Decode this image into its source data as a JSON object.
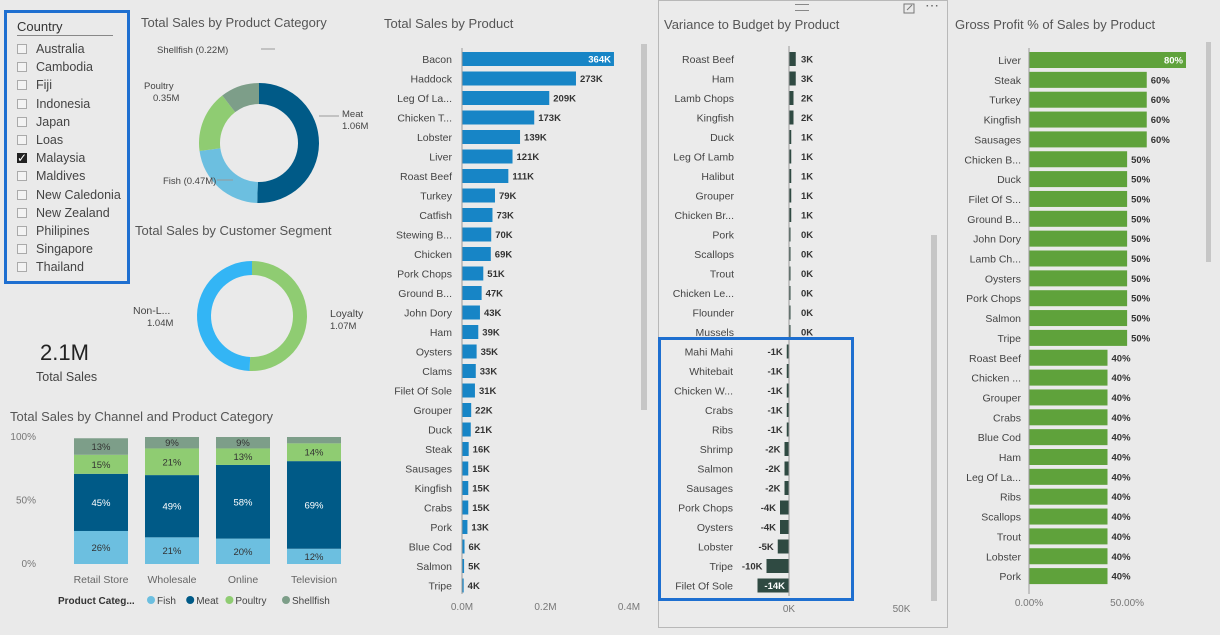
{
  "slicer": {
    "header": "Country",
    "items": [
      {
        "label": "Australia",
        "checked": false
      },
      {
        "label": "Cambodia",
        "checked": false
      },
      {
        "label": "Fiji",
        "checked": false
      },
      {
        "label": "Indonesia",
        "checked": false
      },
      {
        "label": "Japan",
        "checked": false
      },
      {
        "label": "Loas",
        "checked": false
      },
      {
        "label": "Malaysia",
        "checked": true
      },
      {
        "label": "Maldives",
        "checked": false
      },
      {
        "label": "New Caledonia",
        "checked": false
      },
      {
        "label": "New Zealand",
        "checked": false
      },
      {
        "label": "Philipines",
        "checked": false
      },
      {
        "label": "Singapore",
        "checked": false
      },
      {
        "label": "Thailand",
        "checked": false
      }
    ]
  },
  "kpi": {
    "value": "2.1M",
    "label": "Total Sales"
  },
  "variance_panel": {
    "menu_icon": "ellipsis-icon",
    "focus_icon": "focus-mode-icon",
    "drag_icon": "drag-handle-icon",
    "highlight_color": "#1e6fd0"
  },
  "colors": {
    "fish": "#6cbfe0",
    "meat": "#005a87",
    "poultry": "#8fcc72",
    "shellfish": "#7d9e89",
    "bar_blue": "#1785c6",
    "bar_green": "#5fa23b",
    "bar_dark": "#2f4a42"
  },
  "chart_data": [
    {
      "id": "category",
      "type": "pie",
      "title": "Total Sales by Product Category",
      "slices": [
        {
          "name": "Meat",
          "value": 1.06,
          "label": "1.06M",
          "color": "#005a87"
        },
        {
          "name": "Fish",
          "value": 0.47,
          "label": "(0.47M)",
          "color": "#6cbfe0"
        },
        {
          "name": "Poultry",
          "value": 0.35,
          "label": "0.35M",
          "color": "#8fcc72"
        },
        {
          "name": "Shellfish",
          "value": 0.22,
          "label": "(0.22M)",
          "color": "#7d9e89"
        }
      ]
    },
    {
      "id": "segment",
      "type": "pie",
      "title": "Total Sales by Customer Segment",
      "slices": [
        {
          "name": "Loyalty",
          "value": 1.07,
          "label": "1.07M",
          "color": "#8fcc72"
        },
        {
          "name": "Non-L...",
          "value": 1.04,
          "label": "1.04M",
          "color": "#33b5f5"
        }
      ]
    },
    {
      "id": "channel",
      "type": "bar",
      "stacked": "percent",
      "title": "Total Sales by Channel and Product Category",
      "categories": [
        "Retail Store",
        "Wholesale",
        "Online",
        "Television"
      ],
      "ylim": [
        0,
        100
      ],
      "yticks": [
        "0%",
        "50%",
        "100%"
      ],
      "legend_title": "Product Categ...",
      "series": [
        {
          "name": "Fish",
          "color": "#6cbfe0",
          "values": [
            26,
            21,
            20,
            12
          ],
          "labels": [
            "26%",
            "21%",
            "20%",
            "12%"
          ]
        },
        {
          "name": "Meat",
          "color": "#005a87",
          "values": [
            45,
            49,
            58,
            69
          ],
          "labels": [
            "45%",
            "49%",
            "58%",
            "69%"
          ]
        },
        {
          "name": "Poultry",
          "color": "#8fcc72",
          "values": [
            15,
            21,
            13,
            14
          ],
          "labels": [
            "15%",
            "21%",
            "13%",
            "14%"
          ]
        },
        {
          "name": "Shellfish",
          "color": "#7d9e89",
          "values": [
            13,
            9,
            9,
            5
          ],
          "labels": [
            "13%",
            "9%",
            "9%",
            ""
          ]
        }
      ]
    },
    {
      "id": "product",
      "type": "bar",
      "orientation": "horizontal",
      "title": "Total Sales by Product",
      "categories": [
        "Bacon",
        "Haddock",
        "Leg Of La...",
        "Chicken T...",
        "Lobster",
        "Liver",
        "Roast Beef",
        "Turkey",
        "Catfish",
        "Stewing B...",
        "Chicken",
        "Pork Chops",
        "Ground B...",
        "John Dory",
        "Ham",
        "Oysters",
        "Clams",
        "Filet Of Sole",
        "Grouper",
        "Duck",
        "Steak",
        "Sausages",
        "Kingfish",
        "Crabs",
        "Pork",
        "Blue Cod",
        "Salmon",
        "Tripe"
      ],
      "values": [
        364,
        273,
        209,
        173,
        139,
        121,
        111,
        79,
        73,
        70,
        69,
        51,
        47,
        43,
        39,
        35,
        33,
        31,
        22,
        21,
        16,
        15,
        15,
        15,
        13,
        6,
        5,
        4
      ],
      "labels": [
        "364K",
        "273K",
        "209K",
        "173K",
        "139K",
        "121K",
        "111K",
        "79K",
        "73K",
        "70K",
        "69K",
        "51K",
        "47K",
        "43K",
        "39K",
        "35K",
        "33K",
        "31K",
        "22K",
        "21K",
        "16K",
        "15K",
        "15K",
        "15K",
        "13K",
        "6K",
        "5K",
        "4K"
      ],
      "xlim": [
        0,
        400
      ],
      "xticks": [
        {
          "value": 0,
          "label": "0.0M"
        },
        {
          "value": 200,
          "label": "0.2M"
        },
        {
          "value": 400,
          "label": "0.4M"
        }
      ]
    },
    {
      "id": "variance",
      "type": "bar",
      "orientation": "horizontal",
      "title": "Variance to Budget by Product",
      "categories": [
        "Roast Beef",
        "Ham",
        "Lamb Chops",
        "Kingfish",
        "Duck",
        "Leg Of Lamb",
        "Halibut",
        "Grouper",
        "Chicken Br...",
        "Pork",
        "Scallops",
        "Trout",
        "Chicken Le...",
        "Flounder",
        "Mussels",
        "Mahi Mahi",
        "Whitebait",
        "Chicken W...",
        "Crabs",
        "Ribs",
        "Shrimp",
        "Salmon",
        "Sausages",
        "Pork Chops",
        "Oysters",
        "Lobster",
        "Tripe",
        "Filet Of Sole"
      ],
      "values": [
        3,
        3,
        2,
        2,
        1,
        1,
        1,
        1,
        1,
        0.3,
        0.2,
        0.1,
        0.1,
        0.1,
        0.1,
        -1,
        -1,
        -1,
        -1,
        -1,
        -2,
        -2,
        -2,
        -4,
        -4,
        -5,
        -10,
        -14
      ],
      "labels": [
        "3K",
        "3K",
        "2K",
        "2K",
        "1K",
        "1K",
        "1K",
        "1K",
        "1K",
        "0K",
        "0K",
        "0K",
        "0K",
        "0K",
        "0K",
        "-1K",
        "-1K",
        "-1K",
        "-1K",
        "-1K",
        "-2K",
        "-2K",
        "-2K",
        "-4K",
        "-4K",
        "-5K",
        "-10K",
        "-14K"
      ],
      "xlim": [
        -15,
        55
      ],
      "xticks": [
        {
          "value": 0,
          "label": "0K"
        },
        {
          "value": 50,
          "label": "50K"
        }
      ]
    },
    {
      "id": "gp",
      "type": "bar",
      "orientation": "horizontal",
      "title": "Gross Profit % of Sales by Product",
      "categories": [
        "Liver",
        "Steak",
        "Turkey",
        "Kingfish",
        "Sausages",
        "Chicken B...",
        "Duck",
        "Filet Of S...",
        "Ground B...",
        "John Dory",
        "Lamb Ch...",
        "Oysters",
        "Pork Chops",
        "Salmon",
        "Tripe",
        "Roast Beef",
        "Chicken ...",
        "Grouper",
        "Crabs",
        "Blue Cod",
        "Ham",
        "Leg Of La...",
        "Ribs",
        "Scallops",
        "Trout",
        "Lobster",
        "Pork"
      ],
      "values": [
        80,
        60,
        60,
        60,
        60,
        50,
        50,
        50,
        50,
        50,
        50,
        50,
        50,
        50,
        50,
        40,
        40,
        40,
        40,
        40,
        40,
        40,
        40,
        40,
        40,
        40,
        40
      ],
      "labels": [
        "80%",
        "60%",
        "60%",
        "60%",
        "60%",
        "50%",
        "50%",
        "50%",
        "50%",
        "50%",
        "50%",
        "50%",
        "50%",
        "50%",
        "50%",
        "40%",
        "40%",
        "40%",
        "40%",
        "40%",
        "40%",
        "40%",
        "40%",
        "40%",
        "40%",
        "40%",
        "40%"
      ],
      "xlim": [
        0,
        80
      ],
      "xticks": [
        {
          "value": 0,
          "label": "0.00%"
        },
        {
          "value": 50,
          "label": "50.00%"
        }
      ]
    }
  ]
}
